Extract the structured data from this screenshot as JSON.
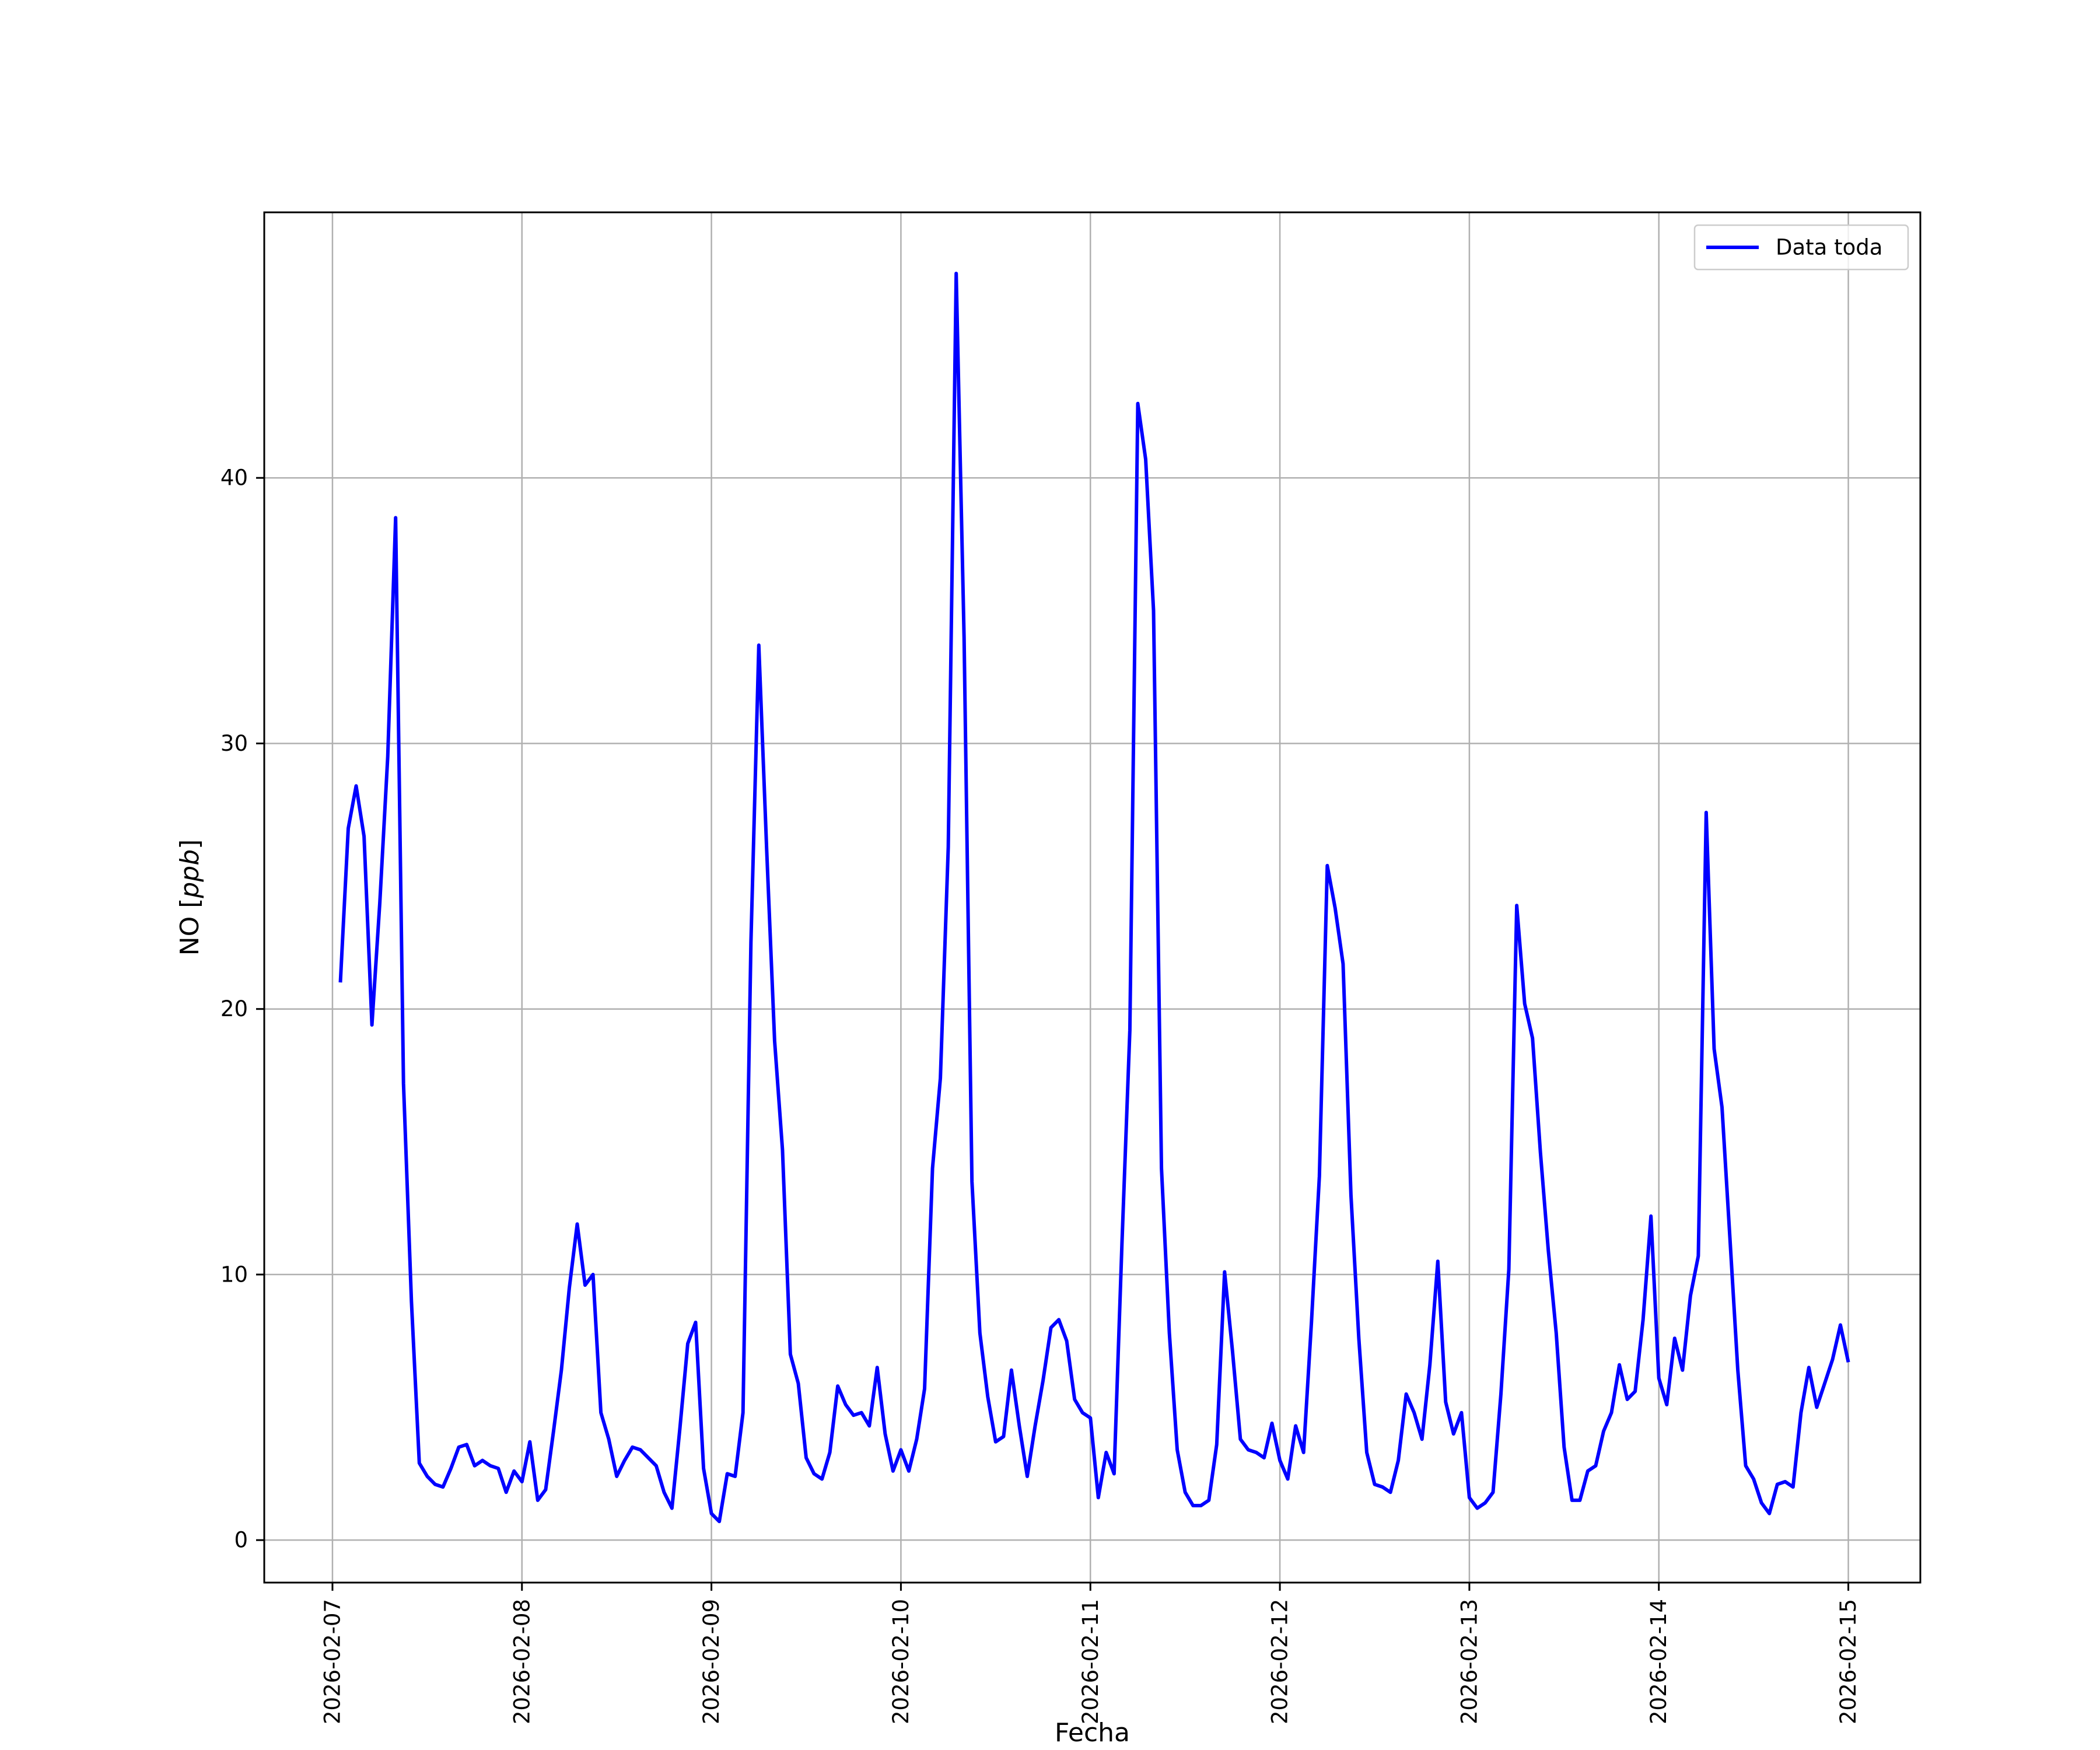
{
  "chart_data": {
    "type": "line",
    "xlabel": "Fecha",
    "ylabel_prefix": "NO [",
    "ylabel_unit": "ppb",
    "ylabel_suffix": "]",
    "x_ticks": [
      "2026-02-07",
      "2026-02-08",
      "2026-02-09",
      "2026-02-10",
      "2026-02-11",
      "2026-02-12",
      "2026-02-13",
      "2026-02-14",
      "2026-02-15"
    ],
    "y_ticks": [
      0,
      10,
      20,
      30,
      40
    ],
    "ylim": [
      -1.6,
      50
    ],
    "xlim_days": [
      -0.36,
      8.38
    ],
    "grid": true,
    "legend_position": "upper-right",
    "series": [
      {
        "name": "Data toda",
        "color": "#0000ff",
        "start": "2026-02-07 01:00",
        "step_hours": 1,
        "values": [
          21.0,
          26.8,
          28.4,
          26.5,
          19.4,
          24.0,
          29.5,
          38.5,
          17.2,
          9.0,
          2.9,
          2.4,
          2.1,
          2.0,
          2.7,
          3.5,
          3.6,
          2.8,
          3.0,
          2.8,
          2.7,
          1.8,
          2.6,
          2.2,
          3.7,
          1.5,
          1.9,
          4.1,
          6.4,
          9.5,
          11.9,
          9.6,
          10.0,
          4.8,
          3.8,
          2.4,
          3.0,
          3.5,
          3.4,
          3.1,
          2.8,
          1.8,
          1.2,
          4.2,
          7.4,
          8.2,
          2.7,
          1.0,
          0.7,
          2.5,
          2.4,
          4.8,
          22.5,
          33.7,
          26.0,
          18.8,
          14.7,
          7.0,
          5.9,
          3.1,
          2.5,
          2.3,
          3.3,
          5.8,
          5.1,
          4.7,
          4.8,
          4.3,
          6.5,
          4.0,
          2.6,
          3.4,
          2.6,
          3.8,
          5.7,
          14.0,
          17.4,
          26.1,
          47.7,
          34.0,
          13.5,
          7.8,
          5.4,
          3.7,
          3.9,
          6.4,
          4.3,
          2.4,
          4.3,
          6.0,
          8.0,
          8.3,
          7.5,
          5.3,
          4.8,
          4.6,
          1.6,
          3.3,
          2.5,
          11.2,
          19.2,
          42.8,
          40.7,
          35.0,
          14.0,
          7.8,
          3.4,
          1.8,
          1.3,
          1.3,
          1.5,
          3.6,
          10.1,
          7.1,
          3.8,
          3.4,
          3.3,
          3.1,
          4.4,
          3.0,
          2.3,
          4.3,
          3.3,
          8.2,
          13.7,
          25.4,
          23.8,
          21.7,
          13.0,
          7.6,
          3.3,
          2.1,
          2.0,
          1.8,
          3.0,
          5.5,
          4.8,
          3.8,
          6.6,
          10.5,
          5.2,
          4.0,
          4.8,
          1.6,
          1.2,
          1.4,
          1.8,
          5.5,
          10.2,
          23.9,
          20.2,
          18.9,
          14.6,
          10.9,
          7.8,
          3.5,
          1.5,
          1.5,
          2.6,
          2.8,
          4.1,
          4.8,
          6.6,
          5.3,
          5.6,
          8.3,
          12.2,
          6.1,
          5.1,
          7.6,
          6.4,
          9.2,
          10.7,
          27.4,
          18.5,
          16.3,
          11.4,
          6.4,
          2.8,
          2.3,
          1.4,
          1.0,
          2.1,
          2.2,
          2.0,
          4.8,
          6.5,
          5.0,
          5.9,
          6.8,
          8.1,
          6.7
        ]
      }
    ]
  }
}
